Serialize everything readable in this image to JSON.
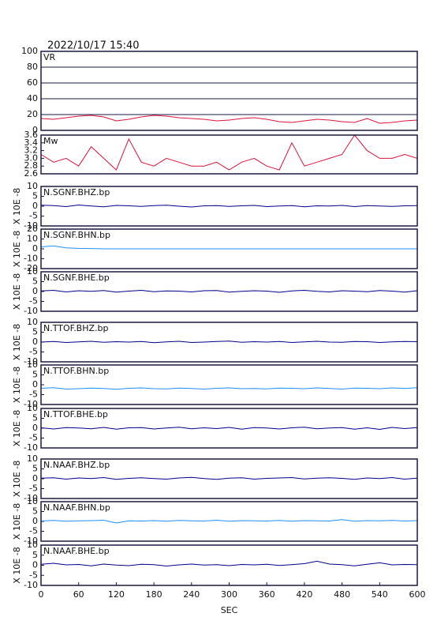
{
  "chart_data": [
    {
      "type": "line",
      "title": "2022/10/17  15:40",
      "xlim": [
        0,
        600
      ],
      "ylim": [
        0,
        100
      ],
      "yticks": [
        0,
        20,
        40,
        60,
        80,
        100
      ],
      "grid": true,
      "x": [
        0,
        20,
        40,
        60,
        80,
        100,
        120,
        140,
        160,
        180,
        200,
        220,
        240,
        260,
        280,
        300,
        320,
        340,
        360,
        380,
        400,
        420,
        440,
        460,
        480,
        500,
        520,
        540,
        560,
        580,
        600
      ],
      "series": [
        {
          "name": "VR",
          "color": "#dc143c",
          "values": [
            15,
            14,
            16,
            18,
            19,
            17,
            12,
            14,
            17,
            19,
            18,
            16,
            15,
            14,
            12,
            13,
            15,
            16,
            14,
            11,
            10,
            12,
            14,
            13,
            11,
            10,
            15,
            9,
            10,
            12,
            13
          ]
        }
      ]
    },
    {
      "type": "line",
      "xlim": [
        0,
        600
      ],
      "ylim": [
        2.6,
        3.6
      ],
      "yticks": [
        2.6,
        2.8,
        {
          "value": 3,
          "label": "3.0"
        },
        3.2,
        3.4,
        3.6
      ],
      "x": [
        0,
        20,
        40,
        60,
        80,
        100,
        120,
        140,
        160,
        180,
        200,
        220,
        240,
        260,
        280,
        300,
        320,
        340,
        360,
        380,
        400,
        420,
        440,
        460,
        480,
        500,
        520,
        540,
        560,
        580,
        600
      ],
      "series": [
        {
          "name": "Mw",
          "color": "#dc143c",
          "values": [
            3.1,
            2.9,
            3.0,
            2.8,
            3.3,
            3.0,
            2.7,
            3.5,
            2.9,
            2.8,
            3.0,
            2.9,
            2.8,
            2.8,
            2.9,
            2.7,
            2.9,
            3.0,
            2.8,
            2.7,
            3.4,
            2.8,
            2.9,
            3.0,
            3.1,
            3.6,
            3.2,
            3.0,
            3.0,
            3.1,
            3.0
          ]
        }
      ]
    },
    {
      "type": "line",
      "ylabel": "X 10E -8",
      "xlim": [
        0,
        600
      ],
      "ylim": [
        -10,
        10
      ],
      "yticks": [
        -10,
        -5,
        0,
        5,
        10
      ],
      "x": [
        0,
        20,
        40,
        60,
        80,
        100,
        120,
        140,
        160,
        180,
        200,
        220,
        240,
        260,
        280,
        300,
        320,
        340,
        360,
        380,
        400,
        420,
        440,
        460,
        480,
        500,
        520,
        540,
        560,
        580,
        600
      ],
      "series": [
        {
          "name": "N.SGNF.BHZ.bp",
          "color": "#00008b",
          "values": [
            0.5,
            0.3,
            -0.2,
            0.6,
            0.1,
            -0.3,
            0.4,
            0.2,
            -0.1,
            0.3,
            0.5,
            0,
            -0.4,
            0.2,
            0.3,
            -0.1,
            0.2,
            0.4,
            -0.2,
            0.1,
            0.3,
            -0.3,
            0.2,
            0.1,
            0.4,
            -0.2,
            0.3,
            0.1,
            -0.1,
            0.2,
            0.3
          ]
        }
      ]
    },
    {
      "type": "line",
      "ylabel": "X 10E -8",
      "xlim": [
        0,
        600
      ],
      "ylim": [
        -20,
        20
      ],
      "yticks": [
        -20,
        -10,
        0,
        10,
        20
      ],
      "x": [
        0,
        20,
        40,
        60,
        80,
        100,
        120,
        140,
        160,
        180,
        200,
        220,
        240,
        260,
        280,
        300,
        320,
        340,
        360,
        380,
        400,
        420,
        440,
        460,
        480,
        500,
        520,
        540,
        560,
        580,
        600
      ],
      "series": [
        {
          "name": "N.SGNF.BHN.bp",
          "color": "#1e90ff",
          "values": [
            2,
            3,
            1,
            0.5,
            0.3,
            0,
            0,
            0,
            0,
            0,
            0,
            0,
            0,
            0,
            0,
            0,
            0,
            0,
            0,
            0,
            0,
            0,
            0,
            0,
            0,
            0,
            0,
            0,
            0,
            0,
            0
          ]
        }
      ]
    },
    {
      "type": "line",
      "ylabel": "X 10E -8",
      "xlim": [
        0,
        600
      ],
      "ylim": [
        -10,
        10
      ],
      "yticks": [
        -10,
        -5,
        0,
        5,
        10
      ],
      "x": [
        0,
        20,
        40,
        60,
        80,
        100,
        120,
        140,
        160,
        180,
        200,
        220,
        240,
        260,
        280,
        300,
        320,
        340,
        360,
        380,
        400,
        420,
        440,
        460,
        480,
        500,
        520,
        540,
        560,
        580,
        600
      ],
      "series": [
        {
          "name": "N.SGNF.BHE.bp",
          "color": "#00008b",
          "values": [
            0.3,
            0.6,
            -0.2,
            0.4,
            0.1,
            0.5,
            -0.3,
            0.2,
            0.6,
            -0.1,
            0.3,
            0.2,
            -0.2,
            0.4,
            0.5,
            -0.3,
            0.1,
            0.4,
            0.2,
            -0.4,
            0.3,
            0.6,
            0.1,
            -0.2,
            0.4,
            0.2,
            -0.1,
            0.5,
            0.2,
            -0.3,
            0.4
          ]
        }
      ]
    },
    {
      "type": "line",
      "ylabel": "X 10E -8",
      "xlim": [
        0,
        600
      ],
      "ylim": [
        -10,
        10
      ],
      "yticks": [
        -10,
        -5,
        0,
        5,
        10
      ],
      "x": [
        0,
        20,
        40,
        60,
        80,
        100,
        120,
        140,
        160,
        180,
        200,
        220,
        240,
        260,
        280,
        300,
        320,
        340,
        360,
        380,
        400,
        420,
        440,
        460,
        480,
        500,
        520,
        540,
        560,
        580,
        600
      ],
      "series": [
        {
          "name": "N.TTOF.BHZ.bp",
          "color": "#00008b",
          "values": [
            0,
            0.3,
            -0.2,
            0.1,
            0.4,
            -0.1,
            0.2,
            0,
            0.3,
            -0.3,
            0.1,
            0.4,
            -0.2,
            0,
            0.3,
            0.5,
            -0.1,
            0.2,
            0,
            0.3,
            -0.2,
            0.1,
            0.4,
            0,
            -0.1,
            0.3,
            0.2,
            -0.2,
            0.1,
            0.3,
            0.2
          ]
        }
      ]
    },
    {
      "type": "line",
      "ylabel": "X 10E -8",
      "xlim": [
        0,
        600
      ],
      "ylim": [
        -10,
        10
      ],
      "yticks": [
        -10,
        -5,
        0,
        5,
        10
      ],
      "x": [
        0,
        20,
        40,
        60,
        80,
        100,
        120,
        140,
        160,
        180,
        200,
        220,
        240,
        260,
        280,
        300,
        320,
        340,
        360,
        380,
        400,
        420,
        440,
        460,
        480,
        500,
        520,
        540,
        560,
        580,
        600
      ],
      "series": [
        {
          "name": "N.TTOF.BHN.bp",
          "color": "#1e90ff",
          "values": [
            -1.8,
            -1.5,
            -2.2,
            -2,
            -1.7,
            -1.9,
            -2.3,
            -1.8,
            -1.6,
            -2,
            -2.1,
            -1.7,
            -1.9,
            -2.2,
            -1.8,
            -1.6,
            -2,
            -1.9,
            -2.1,
            -1.7,
            -1.8,
            -2,
            -1.6,
            -1.9,
            -2.2,
            -1.7,
            -1.8,
            -2,
            -1.6,
            -1.9,
            -1.5
          ]
        }
      ]
    },
    {
      "type": "line",
      "ylabel": "X 10E -8",
      "xlim": [
        0,
        600
      ],
      "ylim": [
        -10,
        10
      ],
      "yticks": [
        -10,
        -5,
        0,
        5,
        10
      ],
      "x": [
        0,
        20,
        40,
        60,
        80,
        100,
        120,
        140,
        160,
        180,
        200,
        220,
        240,
        260,
        280,
        300,
        320,
        340,
        360,
        380,
        400,
        420,
        440,
        460,
        480,
        500,
        520,
        540,
        560,
        580,
        600
      ],
      "series": [
        {
          "name": "N.TTOF.BHE.bp",
          "color": "#00008b",
          "values": [
            0.2,
            -0.4,
            0.3,
            0.1,
            -0.3,
            0.4,
            -0.5,
            0.2,
            0.3,
            -0.4,
            0.1,
            0.5,
            -0.3,
            0.2,
            -0.2,
            0.4,
            -0.5,
            0.3,
            0.1,
            -0.4,
            0.2,
            0.5,
            -0.3,
            0.1,
            0.3,
            -0.5,
            0.2,
            -0.6,
            0.4,
            -0.2,
            0.3
          ]
        }
      ]
    },
    {
      "type": "line",
      "ylabel": "X 10E -8",
      "xlim": [
        0,
        600
      ],
      "ylim": [
        -10,
        10
      ],
      "yticks": [
        -10,
        -5,
        0,
        5,
        10
      ],
      "x": [
        0,
        20,
        40,
        60,
        80,
        100,
        120,
        140,
        160,
        180,
        200,
        220,
        240,
        260,
        280,
        300,
        320,
        340,
        360,
        380,
        400,
        420,
        440,
        460,
        480,
        500,
        520,
        540,
        560,
        580,
        600
      ],
      "series": [
        {
          "name": "N.NAAF.BHZ.bp",
          "color": "#00008b",
          "values": [
            0.3,
            0.5,
            -0.2,
            0.4,
            0.1,
            0.6,
            -0.3,
            0.2,
            0.5,
            0.1,
            -0.2,
            0.4,
            0.7,
            0.1,
            -0.3,
            0.3,
            0.5,
            -0.2,
            0.2,
            0.4,
            0.6,
            -0.1,
            0.3,
            0.5,
            0.2,
            -0.3,
            0.4,
            0.1,
            0.6,
            -0.2,
            0.3
          ]
        }
      ]
    },
    {
      "type": "line",
      "ylabel": "X 10E -8",
      "xlim": [
        0,
        600
      ],
      "ylim": [
        -10,
        10
      ],
      "yticks": [
        -10,
        -5,
        0,
        5,
        10
      ],
      "x": [
        0,
        20,
        40,
        60,
        80,
        100,
        120,
        140,
        160,
        180,
        200,
        220,
        240,
        260,
        280,
        300,
        320,
        340,
        360,
        380,
        400,
        420,
        440,
        460,
        480,
        500,
        520,
        540,
        560,
        580,
        600
      ],
      "series": [
        {
          "name": "N.NAAF.BHN.bp",
          "color": "#1e90ff",
          "values": [
            0.2,
            0.5,
            0.1,
            0.3,
            0.4,
            0.6,
            -0.8,
            0.3,
            0.2,
            0.4,
            0.1,
            0.5,
            0.3,
            0.2,
            0.6,
            0.1,
            0.4,
            0.3,
            0.2,
            0.5,
            0.1,
            0.4,
            0.3,
            0.2,
            0.9,
            0.1,
            0.4,
            0.3,
            0.5,
            0.2,
            0.4
          ]
        }
      ]
    },
    {
      "type": "line",
      "ylabel": "X 10E -8",
      "xlabel": "SEC",
      "xlim": [
        0,
        600
      ],
      "xticks": [
        0,
        60,
        120,
        180,
        240,
        300,
        360,
        420,
        480,
        540,
        600
      ],
      "ylim": [
        -10,
        10
      ],
      "yticks": [
        -10,
        -5,
        0,
        5,
        10
      ],
      "x": [
        0,
        20,
        40,
        60,
        80,
        100,
        120,
        140,
        160,
        180,
        200,
        220,
        240,
        260,
        280,
        300,
        320,
        340,
        360,
        380,
        400,
        420,
        440,
        460,
        480,
        500,
        520,
        540,
        560,
        580,
        600
      ],
      "series": [
        {
          "name": "N.NAAF.BHE.bp",
          "color": "#00008b",
          "values": [
            0.5,
            1,
            0.2,
            0.4,
            -0.3,
            0.6,
            0.1,
            -0.2,
            0.5,
            0.3,
            -0.4,
            0.2,
            0.6,
            0.1,
            0.3,
            -0.2,
            0.4,
            0.2,
            0.5,
            -0.1,
            0.3,
            0.8,
            2,
            0.6,
            0.3,
            -0.3,
            0.5,
            1.2,
            0.2,
            0.4,
            0.3
          ]
        }
      ]
    }
  ]
}
